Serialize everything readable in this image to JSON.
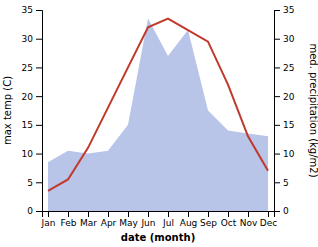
{
  "chart_data": {
    "type": "line",
    "categories": [
      "Jan",
      "Feb",
      "Mar",
      "Apr",
      "May",
      "Jun",
      "Jul",
      "Aug",
      "Sep",
      "Oct",
      "Nov",
      "Dec"
    ],
    "xlabel": "date (month)",
    "ylabel": "max temp (C)",
    "y2label": "med. precipitation (kg/m2)",
    "series": [
      {
        "type": "area",
        "axis": "y2",
        "color": "#b8c4e8",
        "values": [
          8.5,
          10.5,
          10.0,
          10.5,
          15.0,
          33.5,
          27.0,
          31.5,
          17.5,
          14.0,
          13.5,
          13.0
        ]
      },
      {
        "type": "line",
        "axis": "y",
        "color": "#c0392b",
        "values": [
          3.5,
          5.5,
          11.0,
          18.0,
          25.0,
          32.0,
          33.5,
          31.5,
          29.5,
          22.0,
          13.0,
          7.0
        ]
      }
    ],
    "ylim": [
      0,
      35
    ],
    "yticks": [
      0,
      5,
      10,
      15,
      20,
      25,
      30,
      35
    ],
    "y2lim": [
      0,
      35
    ],
    "y2ticks": [
      0,
      5,
      10,
      15,
      20,
      25,
      30,
      35
    ],
    "grid": false
  }
}
